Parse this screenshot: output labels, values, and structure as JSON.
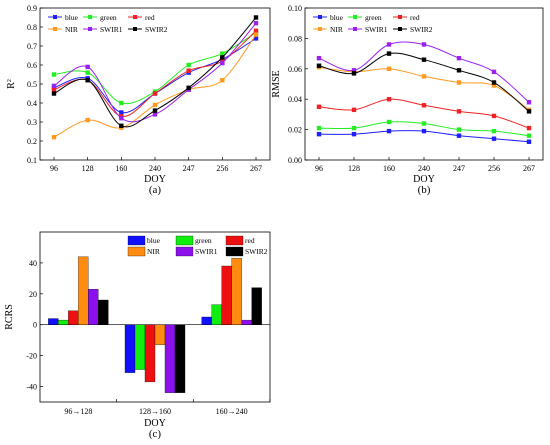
{
  "chart_data": [
    {
      "panel": "(a)",
      "type": "line",
      "xlabel": "DOY",
      "ylabel": "R²",
      "categories": [
        "96",
        "128",
        "160",
        "240",
        "247",
        "256",
        "267"
      ],
      "ylim": [
        0.1,
        0.9
      ],
      "yticks": [
        "0.1",
        "0.2",
        "0.3",
        "0.4",
        "0.5",
        "0.6",
        "0.7",
        "0.8",
        "0.9"
      ],
      "series": [
        {
          "name": "blue",
          "color": "#1f1fff",
          "values": [
            0.48,
            0.53,
            0.35,
            0.45,
            0.56,
            0.63,
            0.74
          ]
        },
        {
          "name": "green",
          "color": "#22ee22",
          "values": [
            0.55,
            0.56,
            0.4,
            0.46,
            0.6,
            0.66,
            0.77
          ]
        },
        {
          "name": "red",
          "color": "#ee2222",
          "values": [
            0.47,
            0.52,
            0.33,
            0.45,
            0.57,
            0.62,
            0.78
          ]
        },
        {
          "name": "NIR",
          "color": "#ff9a1f",
          "values": [
            0.22,
            0.31,
            0.27,
            0.39,
            0.47,
            0.52,
            0.76
          ]
        },
        {
          "name": "SWIR1",
          "color": "#9a22ee",
          "values": [
            0.49,
            0.59,
            0.32,
            0.34,
            0.47,
            0.61,
            0.82
          ]
        },
        {
          "name": "SWIR2",
          "color": "#000000",
          "values": [
            0.45,
            0.52,
            0.28,
            0.36,
            0.48,
            0.64,
            0.85
          ]
        }
      ]
    },
    {
      "panel": "(b)",
      "type": "line",
      "xlabel": "DOY",
      "ylabel": "RMSE",
      "categories": [
        "96",
        "128",
        "160",
        "240",
        "247",
        "256",
        "267"
      ],
      "ylim": [
        0.0,
        0.1
      ],
      "yticks": [
        "0.00",
        "0.02",
        "0.04",
        "0.06",
        "0.08",
        "0.10"
      ],
      "series": [
        {
          "name": "blue",
          "color": "#1f1fff",
          "values": [
            0.017,
            0.017,
            0.019,
            0.019,
            0.016,
            0.014,
            0.012
          ]
        },
        {
          "name": "green",
          "color": "#22ee22",
          "values": [
            0.021,
            0.021,
            0.025,
            0.024,
            0.02,
            0.019,
            0.016
          ]
        },
        {
          "name": "red",
          "color": "#ee2222",
          "values": [
            0.035,
            0.033,
            0.04,
            0.036,
            0.032,
            0.029,
            0.021
          ]
        },
        {
          "name": "NIR",
          "color": "#ff9a1f",
          "values": [
            0.061,
            0.058,
            0.06,
            0.055,
            0.051,
            0.049,
            0.033
          ]
        },
        {
          "name": "SWIR1",
          "color": "#9a22ee",
          "values": [
            0.067,
            0.059,
            0.076,
            0.076,
            0.067,
            0.058,
            0.038
          ]
        },
        {
          "name": "SWIR2",
          "color": "#000000",
          "values": [
            0.062,
            0.057,
            0.07,
            0.066,
            0.059,
            0.051,
            0.032
          ]
        }
      ]
    },
    {
      "panel": "(c)",
      "type": "bar",
      "xlabel": "DOY",
      "ylabel": "RCRS",
      "categories": [
        "96→128",
        "128→160",
        "160→240"
      ],
      "ylim": [
        -50,
        60
      ],
      "yticks": [
        "-40",
        "-20",
        "0",
        "20",
        "40"
      ],
      "series": [
        {
          "name": "blue",
          "color": "#1010ff",
          "values": [
            4,
            -31,
            5
          ]
        },
        {
          "name": "green",
          "color": "#10ee10",
          "values": [
            3,
            -29,
            13
          ]
        },
        {
          "name": "red",
          "color": "#ee1010",
          "values": [
            9,
            -37,
            38
          ]
        },
        {
          "name": "NIR",
          "color": "#ff8c10",
          "values": [
            44,
            -13,
            43
          ]
        },
        {
          "name": "SWIR1",
          "color": "#8c10ee",
          "values": [
            23,
            -44,
            3
          ]
        },
        {
          "name": "SWIR2",
          "color": "#000000",
          "values": [
            16,
            -44,
            24
          ]
        }
      ]
    }
  ]
}
